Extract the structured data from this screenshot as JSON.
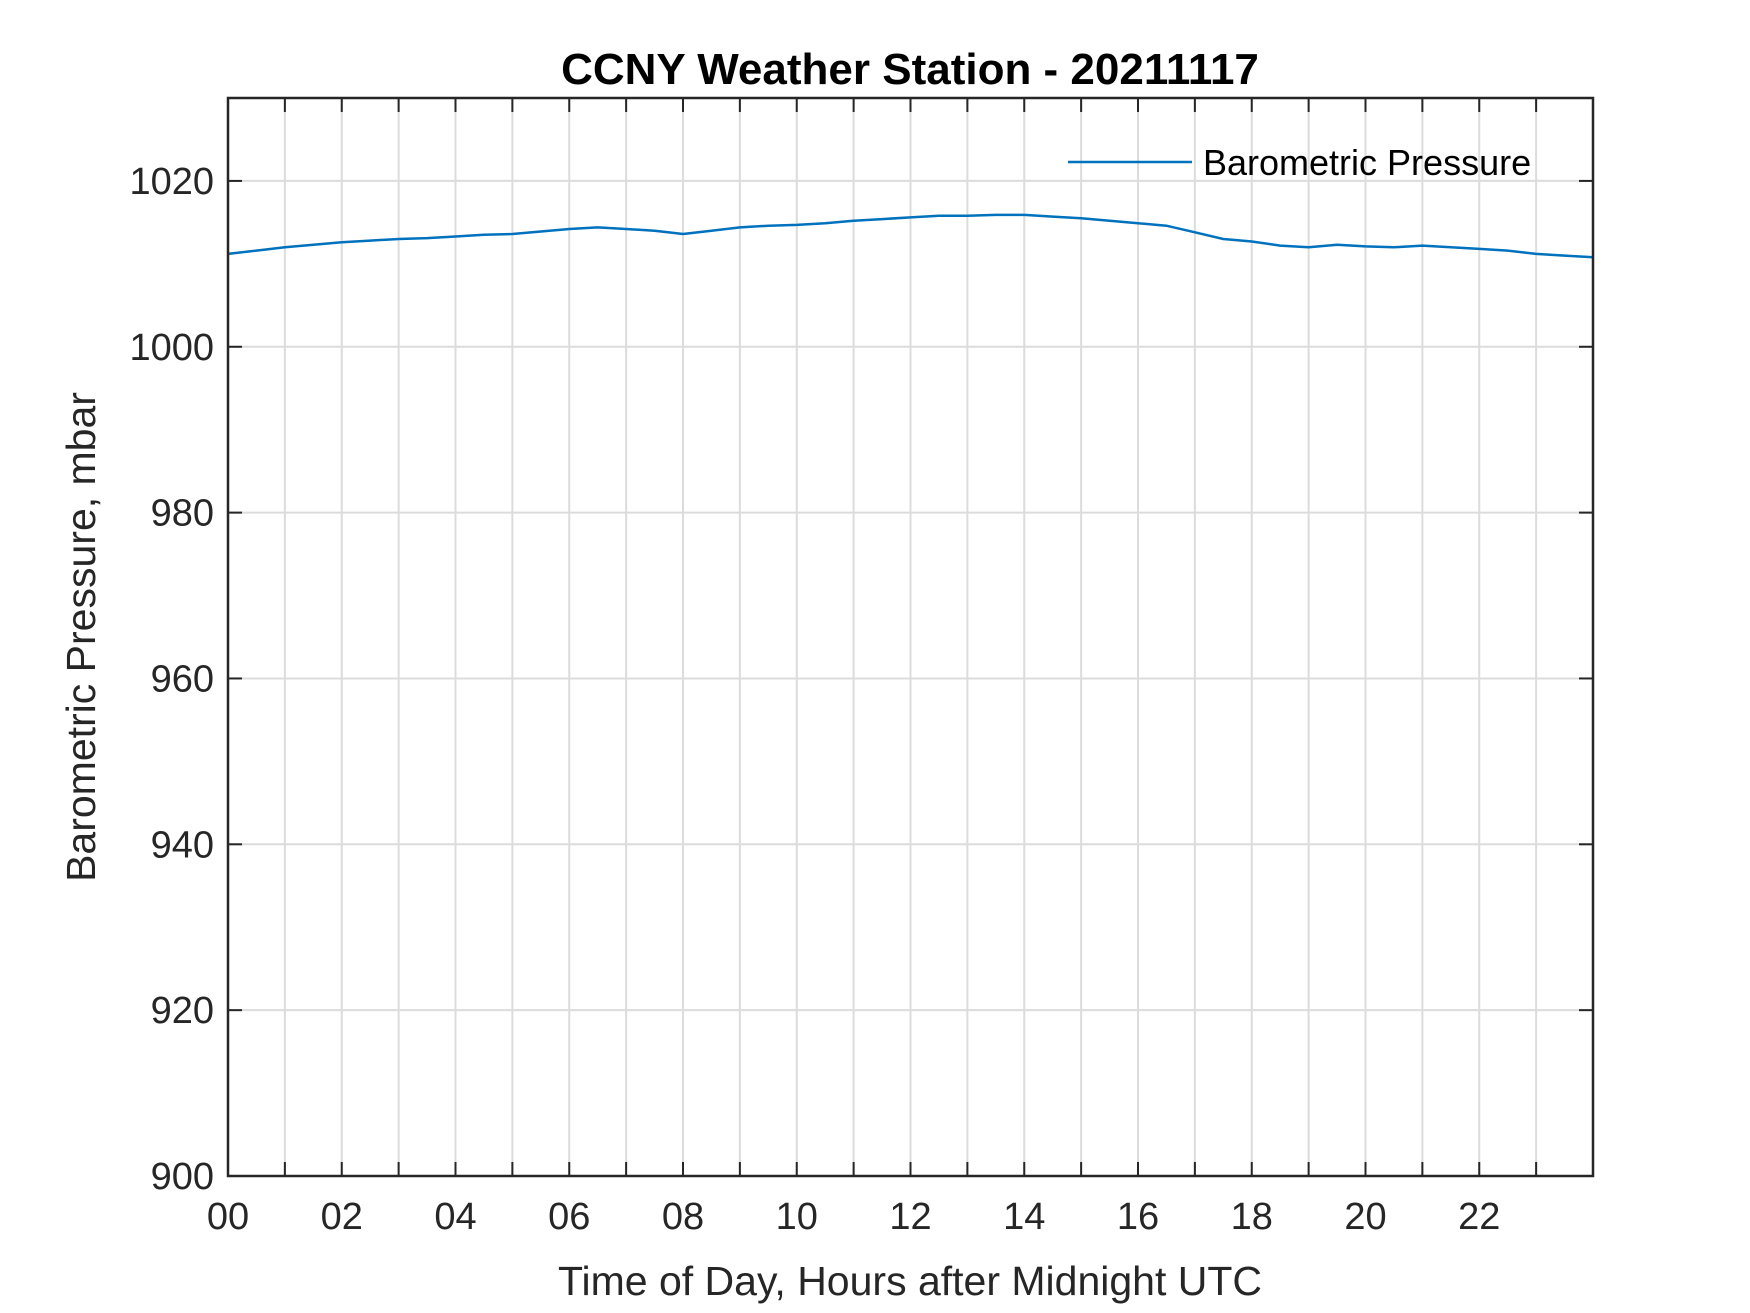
{
  "chart_data": {
    "type": "line",
    "title": "CCNY Weather Station - 20211117",
    "xlabel": "Time of Day, Hours after Midnight UTC",
    "ylabel": "Barometric Pressure, mbar",
    "xlim": [
      0,
      24
    ],
    "ylim": [
      900,
      1030
    ],
    "x_tick_values": [
      0,
      2,
      4,
      6,
      8,
      10,
      12,
      14,
      16,
      18,
      20,
      22
    ],
    "x_tick_labels": [
      "00",
      "02",
      "04",
      "06",
      "08",
      "10",
      "12",
      "14",
      "16",
      "18",
      "20",
      "22"
    ],
    "x_grid_step": 1,
    "y_tick_values": [
      900,
      920,
      940,
      960,
      980,
      1000,
      1020
    ],
    "y_tick_labels": [
      "900",
      "920",
      "940",
      "960",
      "980",
      "1000",
      "1020"
    ],
    "grid": true,
    "legend": {
      "placement": "top-right",
      "entries": [
        "Barometric Pressure"
      ]
    },
    "series": [
      {
        "name": "Barometric Pressure",
        "color": "#0072BD",
        "x": [
          0,
          0.5,
          1,
          1.5,
          2,
          2.5,
          3,
          3.5,
          4,
          4.5,
          5,
          5.5,
          6,
          6.5,
          7,
          7.5,
          8,
          8.5,
          9,
          9.5,
          10,
          10.5,
          11,
          11.5,
          12,
          12.5,
          13,
          13.5,
          14,
          14.5,
          15,
          15.5,
          16,
          16.5,
          17,
          17.5,
          18,
          18.5,
          19,
          19.5,
          20,
          20.5,
          21,
          21.5,
          22,
          22.5,
          23,
          23.5,
          24
        ],
        "values": [
          1011.2,
          1011.6,
          1012.0,
          1012.3,
          1012.6,
          1012.8,
          1013.0,
          1013.1,
          1013.3,
          1013.5,
          1013.6,
          1013.9,
          1014.2,
          1014.4,
          1014.2,
          1014.0,
          1013.6,
          1014.0,
          1014.4,
          1014.6,
          1014.7,
          1014.9,
          1015.2,
          1015.4,
          1015.6,
          1015.8,
          1015.8,
          1015.9,
          1015.9,
          1015.7,
          1015.5,
          1015.2,
          1014.9,
          1014.6,
          1013.8,
          1013.0,
          1012.7,
          1012.2,
          1012.0,
          1012.3,
          1012.1,
          1012.0,
          1012.2,
          1012.0,
          1011.8,
          1011.6,
          1011.2,
          1011.0,
          1010.8
        ]
      }
    ]
  }
}
